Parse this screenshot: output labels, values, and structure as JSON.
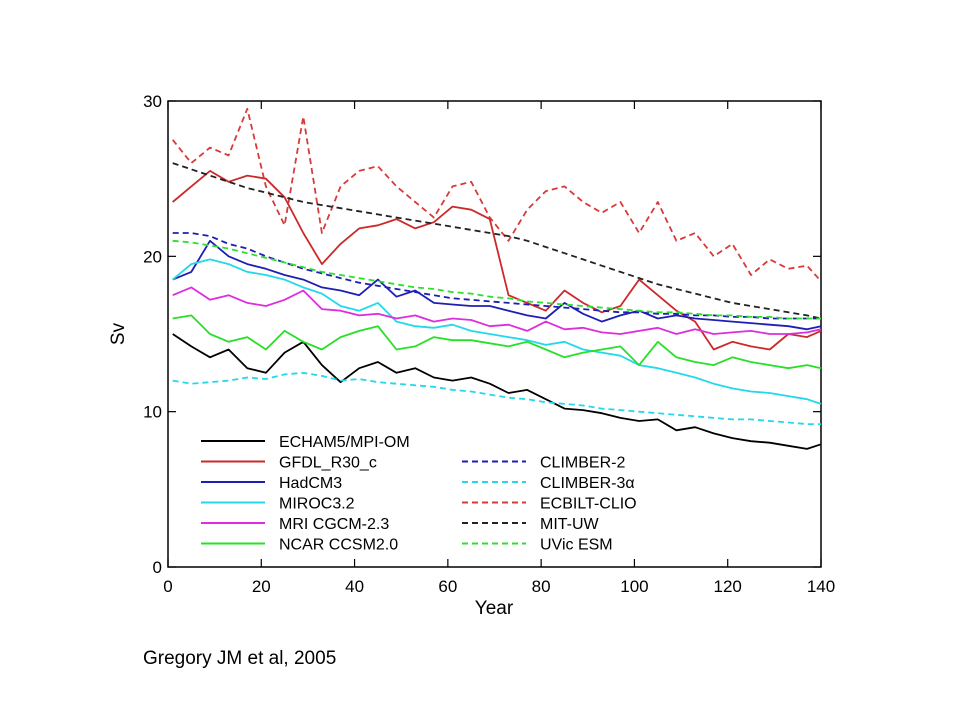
{
  "caption": "Gregory JM et al, 2005",
  "chart_data": {
    "type": "line",
    "title": "",
    "xlabel": "Year",
    "ylabel": "Sv",
    "xlim": [
      0,
      140
    ],
    "ylim": [
      0,
      30
    ],
    "xticks": [
      0,
      20,
      40,
      60,
      80,
      100,
      120,
      140
    ],
    "yticks": [
      0,
      10,
      20,
      30
    ],
    "grid": false,
    "legend_position": "lower-center inside plot, two columns",
    "x": [
      1,
      5,
      9,
      13,
      17,
      21,
      25,
      29,
      33,
      37,
      41,
      45,
      49,
      53,
      57,
      61,
      65,
      69,
      73,
      77,
      81,
      85,
      89,
      93,
      97,
      101,
      105,
      109,
      113,
      117,
      121,
      125,
      129,
      133,
      137,
      140
    ],
    "series": [
      {
        "name": "ECHAM5/MPI-OM",
        "color": "#000000",
        "dash": "solid",
        "values": [
          15.0,
          14.2,
          13.5,
          14.0,
          12.8,
          12.5,
          13.8,
          14.5,
          13.0,
          11.9,
          12.8,
          13.2,
          12.5,
          12.8,
          12.2,
          12.0,
          12.2,
          11.8,
          11.2,
          11.4,
          10.8,
          10.2,
          10.1,
          9.9,
          9.6,
          9.4,
          9.5,
          8.8,
          9.0,
          8.6,
          8.3,
          8.1,
          8.0,
          7.8,
          7.6,
          7.9
        ]
      },
      {
        "name": "GFDL_R30_c",
        "color": "#cc2a2a",
        "dash": "solid",
        "values": [
          23.5,
          24.5,
          25.5,
          24.8,
          25.2,
          25.0,
          23.8,
          21.5,
          19.5,
          20.8,
          21.8,
          22.0,
          22.4,
          21.8,
          22.2,
          23.2,
          23.0,
          22.4,
          17.5,
          17.0,
          16.5,
          17.8,
          17.0,
          16.4,
          16.8,
          18.5,
          17.5,
          16.5,
          15.8,
          14.0,
          14.5,
          14.2,
          14.0,
          15.0,
          14.8,
          15.2
        ]
      },
      {
        "name": "HadCM3",
        "color": "#1e1eb4",
        "dash": "solid",
        "values": [
          18.5,
          19.0,
          21.0,
          20.0,
          19.5,
          19.2,
          18.8,
          18.5,
          18.0,
          17.8,
          17.5,
          18.5,
          17.4,
          17.8,
          17.0,
          16.9,
          16.8,
          16.8,
          16.5,
          16.2,
          16.0,
          17.0,
          16.3,
          15.8,
          16.2,
          16.5,
          16.0,
          16.2,
          16.0,
          15.9,
          15.8,
          15.7,
          15.6,
          15.5,
          15.3,
          15.5
        ]
      },
      {
        "name": "MIROC3.2",
        "color": "#22d8ea",
        "dash": "solid",
        "values": [
          18.5,
          19.5,
          19.8,
          19.5,
          19.0,
          18.8,
          18.5,
          18.0,
          17.6,
          16.8,
          16.5,
          17.0,
          15.8,
          15.5,
          15.4,
          15.6,
          15.2,
          15.0,
          14.8,
          14.6,
          14.3,
          14.5,
          14.0,
          13.8,
          13.6,
          13.0,
          12.8,
          12.5,
          12.2,
          11.8,
          11.5,
          11.3,
          11.2,
          11.0,
          10.8,
          10.5
        ]
      },
      {
        "name": "MRI CGCM-2.3",
        "color": "#dd2ddd",
        "dash": "solid",
        "values": [
          17.5,
          18.0,
          17.2,
          17.5,
          17.0,
          16.8,
          17.2,
          17.8,
          16.6,
          16.5,
          16.2,
          16.3,
          16.0,
          16.2,
          15.8,
          16.0,
          15.9,
          15.5,
          15.6,
          15.2,
          15.8,
          15.3,
          15.4,
          15.1,
          15.0,
          15.2,
          15.4,
          15.0,
          15.3,
          15.0,
          15.1,
          15.2,
          15.0,
          15.0,
          15.1,
          15.3
        ]
      },
      {
        "name": "NCAR CCSM2.0",
        "color": "#27e027",
        "dash": "solid",
        "values": [
          16.0,
          16.2,
          15.0,
          14.5,
          14.8,
          14.0,
          15.2,
          14.5,
          14.0,
          14.8,
          15.2,
          15.5,
          14.0,
          14.2,
          14.8,
          14.6,
          14.6,
          14.4,
          14.2,
          14.5,
          14.0,
          13.5,
          13.8,
          14.0,
          14.2,
          13.0,
          14.5,
          13.5,
          13.2,
          13.0,
          13.5,
          13.2,
          13.0,
          12.8,
          13.0,
          12.8
        ]
      },
      {
        "name": "CLIMBER-2",
        "color": "#1e1eb4",
        "dash": "dashed",
        "values": [
          21.5,
          21.5,
          21.3,
          20.8,
          20.5,
          20.0,
          19.6,
          19.2,
          18.9,
          18.6,
          18.3,
          18.1,
          17.9,
          17.7,
          17.5,
          17.3,
          17.2,
          17.1,
          17.0,
          16.9,
          16.8,
          16.7,
          16.6,
          16.5,
          16.4,
          16.4,
          16.3,
          16.3,
          16.2,
          16.2,
          16.1,
          16.1,
          16.0,
          16.0,
          16.0,
          16.0
        ]
      },
      {
        "name": "CLIMBER-3α",
        "color": "#22d8ea",
        "dash": "dashed",
        "values": [
          12.0,
          11.8,
          11.9,
          12.0,
          12.2,
          12.1,
          12.4,
          12.5,
          12.3,
          12.0,
          12.1,
          11.9,
          11.8,
          11.7,
          11.6,
          11.4,
          11.3,
          11.1,
          10.9,
          10.8,
          10.6,
          10.5,
          10.4,
          10.2,
          10.1,
          10.0,
          9.9,
          9.8,
          9.7,
          9.6,
          9.5,
          9.5,
          9.4,
          9.3,
          9.2,
          9.2
        ]
      },
      {
        "name": "ECBILT-CLIO",
        "color": "#d83a3a",
        "dash": "dashed",
        "values": [
          27.5,
          26.0,
          27.0,
          26.5,
          29.5,
          24.5,
          22.0,
          29.0,
          21.5,
          24.5,
          25.5,
          25.8,
          24.5,
          23.5,
          22.5,
          24.5,
          24.8,
          22.5,
          21.0,
          23.0,
          24.2,
          24.5,
          23.5,
          22.8,
          23.5,
          21.5,
          23.5,
          21.0,
          21.5,
          20.0,
          20.8,
          18.8,
          19.8,
          19.2,
          19.4,
          18.4
        ]
      },
      {
        "name": "MIT-UW",
        "color": "#222222",
        "dash": "dashed",
        "values": [
          26.0,
          25.6,
          25.2,
          24.8,
          24.4,
          24.1,
          23.8,
          23.5,
          23.3,
          23.1,
          22.9,
          22.7,
          22.5,
          22.3,
          22.1,
          21.9,
          21.7,
          21.5,
          21.3,
          21.0,
          20.6,
          20.2,
          19.8,
          19.4,
          19.0,
          18.6,
          18.2,
          17.9,
          17.6,
          17.3,
          17.0,
          16.8,
          16.6,
          16.4,
          16.2,
          16.0
        ]
      },
      {
        "name": "UVic ESM",
        "color": "#2ee02e",
        "dash": "dashed",
        "values": [
          21.0,
          20.9,
          20.7,
          20.5,
          20.2,
          19.9,
          19.6,
          19.3,
          19.0,
          18.8,
          18.6,
          18.4,
          18.2,
          18.0,
          17.9,
          17.7,
          17.6,
          17.4,
          17.3,
          17.1,
          17.0,
          16.9,
          16.8,
          16.7,
          16.6,
          16.5,
          16.4,
          16.4,
          16.3,
          16.2,
          16.2,
          16.1,
          16.1,
          16.0,
          16.0,
          16.0
        ]
      }
    ]
  }
}
